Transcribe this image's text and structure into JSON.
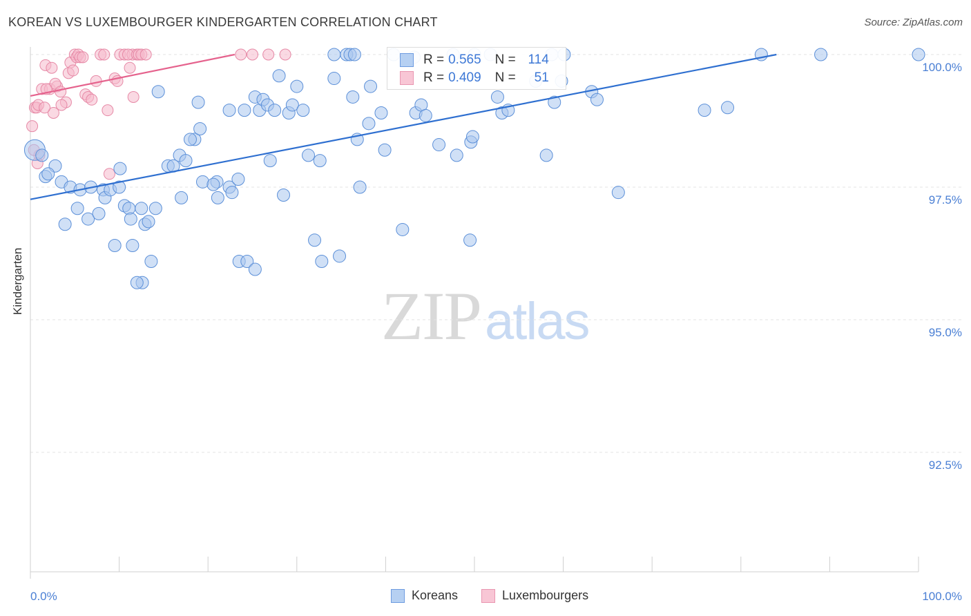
{
  "header": {
    "title": "KOREAN VS LUXEMBOURGER KINDERGARTEN CORRELATION CHART",
    "source": "Source: ZipAtlas.com"
  },
  "watermark": {
    "zip": "ZIP",
    "atlas": "atlas"
  },
  "legend_top": {
    "koreans": {
      "r_label": "R =",
      "r_value": "0.565",
      "n_label": "N =",
      "n_value": "114"
    },
    "luxembourgers": {
      "r_label": "R =",
      "r_value": "0.409",
      "n_label": "N =",
      "n_value": "51"
    }
  },
  "legend_bottom": {
    "koreans": "Koreans",
    "luxembourgers": "Luxembourgers"
  },
  "colors": {
    "koreans_fill": "#a9c7ef",
    "koreans_stroke": "#5b8fd8",
    "koreans_line": "#2e6fd0",
    "lux_fill": "#f6b9cc",
    "lux_stroke": "#e689a6",
    "lux_line": "#e5628d",
    "grid": "#e3e3e3",
    "axis_label": "#4a7fd4"
  },
  "chart_data": {
    "type": "scatter",
    "title": "KOREAN VS LUXEMBOURGER KINDERGARTEN CORRELATION CHART",
    "xlabel": "",
    "ylabel": "Kindergarten",
    "xlim": [
      0,
      100
    ],
    "ylim": [
      90.0,
      100.3
    ],
    "x_tick_labels": [
      "0.0%",
      "100.0%"
    ],
    "y_ticks": [
      92.5,
      95.0,
      97.5,
      100.0
    ],
    "y_tick_labels": [
      "92.5%",
      "95.0%",
      "97.5%",
      "100.0%"
    ],
    "series": [
      {
        "name": "Koreans",
        "trend": {
          "x": [
            0,
            84
          ],
          "y": [
            97.27,
            100.0
          ]
        },
        "points": [
          [
            0.5,
            98.2
          ],
          [
            1.3,
            98.1
          ],
          [
            1.7,
            97.7
          ],
          [
            2.8,
            97.9
          ],
          [
            2.0,
            97.75
          ],
          [
            3.5,
            97.6
          ],
          [
            4.5,
            97.5
          ],
          [
            5.6,
            97.45
          ],
          [
            6.8,
            97.5
          ],
          [
            8.2,
            97.45
          ],
          [
            8.4,
            97.3
          ],
          [
            9.0,
            97.45
          ],
          [
            10.0,
            97.5
          ],
          [
            10.6,
            97.15
          ],
          [
            5.3,
            97.1
          ],
          [
            6.5,
            96.9
          ],
          [
            7.7,
            97.0
          ],
          [
            3.9,
            96.8
          ],
          [
            9.5,
            96.4
          ],
          [
            11.1,
            97.1
          ],
          [
            11.3,
            96.9
          ],
          [
            12.9,
            96.8
          ],
          [
            13.3,
            96.85
          ],
          [
            12.5,
            97.1
          ],
          [
            14.1,
            97.1
          ],
          [
            11.5,
            96.4
          ],
          [
            13.6,
            96.1
          ],
          [
            12.6,
            95.7
          ],
          [
            12.0,
            95.7
          ],
          [
            10.1,
            97.85
          ],
          [
            15.5,
            97.9
          ],
          [
            16.1,
            97.9
          ],
          [
            16.8,
            98.1
          ],
          [
            17.5,
            98.0
          ],
          [
            18.5,
            98.4
          ],
          [
            19.1,
            98.6
          ],
          [
            19.4,
            97.6
          ],
          [
            18.0,
            98.4
          ],
          [
            21.0,
            97.6
          ],
          [
            21.1,
            97.3
          ],
          [
            20.6,
            97.55
          ],
          [
            22.4,
            97.5
          ],
          [
            23.4,
            97.65
          ],
          [
            22.7,
            97.4
          ],
          [
            17.0,
            97.3
          ],
          [
            14.4,
            99.3
          ],
          [
            18.9,
            99.1
          ],
          [
            22.4,
            98.95
          ],
          [
            24.1,
            98.95
          ],
          [
            25.3,
            99.2
          ],
          [
            25.8,
            98.95
          ],
          [
            26.2,
            99.15
          ],
          [
            26.7,
            99.05
          ],
          [
            27.5,
            98.95
          ],
          [
            27.0,
            98.0
          ],
          [
            23.5,
            96.1
          ],
          [
            24.4,
            96.1
          ],
          [
            25.3,
            95.95
          ],
          [
            28.0,
            99.6
          ],
          [
            29.1,
            98.9
          ],
          [
            29.5,
            99.05
          ],
          [
            30.0,
            99.4
          ],
          [
            30.7,
            98.95
          ],
          [
            28.5,
            97.35
          ],
          [
            31.3,
            98.1
          ],
          [
            32.0,
            96.5
          ],
          [
            32.6,
            98.0
          ],
          [
            32.8,
            96.1
          ],
          [
            34.8,
            96.2
          ],
          [
            34.2,
            99.55
          ],
          [
            35.6,
            100.0
          ],
          [
            36.0,
            100.0
          ],
          [
            36.5,
            100.0
          ],
          [
            34.2,
            100.0
          ],
          [
            38.3,
            99.4
          ],
          [
            39.5,
            98.9
          ],
          [
            38.1,
            98.7
          ],
          [
            36.3,
            99.2
          ],
          [
            36.8,
            98.4
          ],
          [
            37.1,
            97.5
          ],
          [
            39.9,
            98.2
          ],
          [
            40.9,
            100.0
          ],
          [
            41.9,
            96.7
          ],
          [
            43.4,
            98.9
          ],
          [
            44.0,
            99.05
          ],
          [
            44.5,
            98.85
          ],
          [
            43.2,
            99.95
          ],
          [
            46.0,
            98.3
          ],
          [
            47.6,
            100.0
          ],
          [
            48.0,
            98.1
          ],
          [
            49.5,
            96.5
          ],
          [
            50.0,
            100.0
          ],
          [
            49.6,
            98.35
          ],
          [
            49.8,
            98.45
          ],
          [
            51.8,
            100.0
          ],
          [
            52.6,
            99.2
          ],
          [
            53.1,
            98.9
          ],
          [
            53.8,
            98.95
          ],
          [
            56.9,
            99.5
          ],
          [
            58.7,
            100.0
          ],
          [
            59.8,
            99.5
          ],
          [
            60.1,
            100.0
          ],
          [
            59.0,
            99.1
          ],
          [
            58.1,
            98.1
          ],
          [
            63.2,
            99.3
          ],
          [
            63.8,
            99.15
          ],
          [
            66.2,
            97.4
          ],
          [
            75.9,
            98.95
          ],
          [
            78.5,
            99.0
          ],
          [
            82.3,
            100.0
          ],
          [
            89.0,
            100.0
          ],
          [
            100.0,
            100.0
          ]
        ]
      },
      {
        "name": "Luxembourgers",
        "trend": {
          "x": [
            0,
            23
          ],
          "y": [
            99.22,
            100.0
          ]
        },
        "points": [
          [
            0.2,
            98.65
          ],
          [
            0.5,
            99.0
          ],
          [
            0.7,
            99.0
          ],
          [
            1.0,
            98.1
          ],
          [
            0.4,
            98.2
          ],
          [
            0.8,
            97.95
          ],
          [
            0.9,
            99.05
          ],
          [
            1.3,
            99.35
          ],
          [
            1.7,
            99.8
          ],
          [
            2.4,
            99.75
          ],
          [
            2.2,
            99.35
          ],
          [
            2.6,
            98.9
          ],
          [
            3.0,
            99.4
          ],
          [
            2.8,
            99.45
          ],
          [
            3.4,
            99.3
          ],
          [
            4.0,
            99.1
          ],
          [
            4.3,
            99.65
          ],
          [
            4.5,
            99.85
          ],
          [
            4.8,
            99.7
          ],
          [
            5.0,
            100.0
          ],
          [
            5.2,
            99.95
          ],
          [
            5.4,
            100.0
          ],
          [
            5.6,
            99.95
          ],
          [
            5.9,
            99.95
          ],
          [
            6.2,
            99.25
          ],
          [
            6.5,
            99.2
          ],
          [
            6.9,
            99.15
          ],
          [
            7.4,
            99.5
          ],
          [
            7.9,
            100.0
          ],
          [
            8.3,
            100.0
          ],
          [
            8.7,
            98.95
          ],
          [
            8.9,
            97.75
          ],
          [
            9.5,
            99.55
          ],
          [
            9.8,
            99.5
          ],
          [
            10.1,
            100.0
          ],
          [
            10.6,
            100.0
          ],
          [
            11.2,
            99.75
          ],
          [
            11.5,
            100.0
          ],
          [
            11.0,
            100.0
          ],
          [
            11.6,
            99.2
          ],
          [
            12.0,
            100.0
          ],
          [
            12.2,
            100.0
          ],
          [
            12.5,
            100.0
          ],
          [
            13.0,
            100.0
          ],
          [
            1.6,
            99.0
          ],
          [
            3.5,
            99.05
          ],
          [
            1.8,
            99.35
          ],
          [
            23.7,
            100.0
          ],
          [
            25.0,
            100.0
          ],
          [
            26.8,
            100.0
          ],
          [
            28.7,
            100.0
          ]
        ]
      }
    ]
  }
}
